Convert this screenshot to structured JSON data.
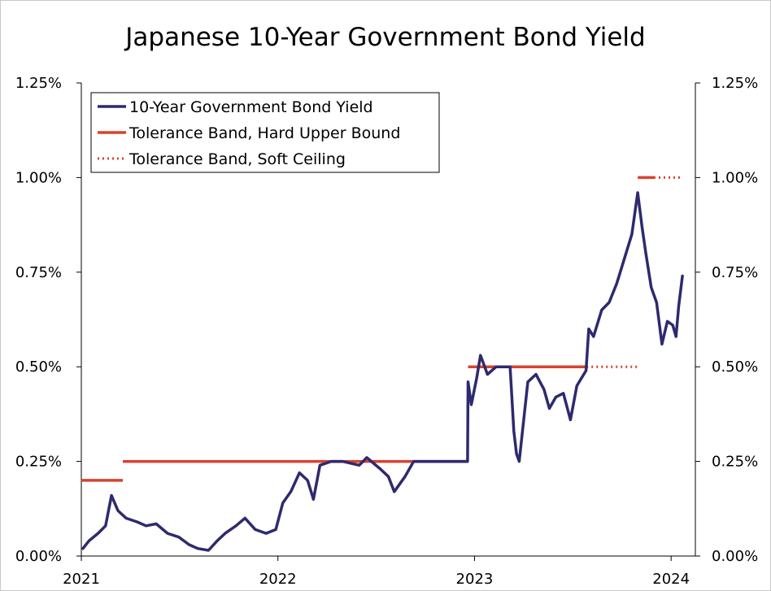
{
  "chart_data": {
    "type": "line",
    "title": "Japanese 10-Year Government Bond Yield",
    "y_ticks": [
      "0.00%",
      "0.25%",
      "0.50%",
      "0.75%",
      "1.00%",
      "1.25%"
    ],
    "y_tick_values": [
      0,
      0.25,
      0.5,
      0.75,
      1.0,
      1.25
    ],
    "x_ticks": [
      "2021",
      "2022",
      "2023",
      "2024"
    ],
    "x_tick_values": [
      "2021-01-01",
      "2022-01-01",
      "2023-01-01",
      "2024-01-01"
    ],
    "xlim": [
      "2021-01-01",
      "2024-02-15"
    ],
    "ylim": [
      0,
      1.25
    ],
    "dual_y_axis": true,
    "grid": false,
    "legend_position": "top-left",
    "colors": {
      "yield": "#2e2a6e",
      "band": "#d8432e"
    },
    "legend": [
      {
        "label": "10-Year Government Bond Yield",
        "style": "solid",
        "color": "#2e2a6e"
      },
      {
        "label": "Tolerance Band, Hard Upper Bound",
        "style": "solid",
        "color": "#d8432e"
      },
      {
        "label": "Tolerance Band, Soft Ceiling",
        "style": "dotted",
        "color": "#d8432e"
      }
    ],
    "series": [
      {
        "name": "10-Year Government Bond Yield",
        "points": [
          [
            "2021-01-04",
            0.02
          ],
          [
            "2021-01-15",
            0.04
          ],
          [
            "2021-02-01",
            0.06
          ],
          [
            "2021-02-15",
            0.08
          ],
          [
            "2021-02-26",
            0.16
          ],
          [
            "2021-03-10",
            0.12
          ],
          [
            "2021-03-25",
            0.1
          ],
          [
            "2021-04-15",
            0.09
          ],
          [
            "2021-05-01",
            0.08
          ],
          [
            "2021-05-20",
            0.085
          ],
          [
            "2021-06-10",
            0.06
          ],
          [
            "2021-07-01",
            0.05
          ],
          [
            "2021-07-20",
            0.03
          ],
          [
            "2021-08-05",
            0.02
          ],
          [
            "2021-08-25",
            0.015
          ],
          [
            "2021-09-10",
            0.04
          ],
          [
            "2021-09-25",
            0.06
          ],
          [
            "2021-10-15",
            0.08
          ],
          [
            "2021-11-01",
            0.1
          ],
          [
            "2021-11-20",
            0.07
          ],
          [
            "2021-12-10",
            0.06
          ],
          [
            "2021-12-28",
            0.07
          ],
          [
            "2022-01-10",
            0.14
          ],
          [
            "2022-01-25",
            0.17
          ],
          [
            "2022-02-10",
            0.22
          ],
          [
            "2022-02-25",
            0.2
          ],
          [
            "2022-03-08",
            0.15
          ],
          [
            "2022-03-20",
            0.24
          ],
          [
            "2022-04-10",
            0.25
          ],
          [
            "2022-05-01",
            0.25
          ],
          [
            "2022-06-01",
            0.24
          ],
          [
            "2022-06-15",
            0.26
          ],
          [
            "2022-07-10",
            0.23
          ],
          [
            "2022-07-25",
            0.21
          ],
          [
            "2022-08-05",
            0.17
          ],
          [
            "2022-08-25",
            0.21
          ],
          [
            "2022-09-10",
            0.25
          ],
          [
            "2022-10-15",
            0.25
          ],
          [
            "2022-11-15",
            0.25
          ],
          [
            "2022-12-19",
            0.25
          ],
          [
            "2022-12-20",
            0.46
          ],
          [
            "2022-12-26",
            0.4
          ],
          [
            "2023-01-05",
            0.47
          ],
          [
            "2023-01-12",
            0.53
          ],
          [
            "2023-01-25",
            0.48
          ],
          [
            "2023-02-10",
            0.5
          ],
          [
            "2023-02-28",
            0.5
          ],
          [
            "2023-03-08",
            0.5
          ],
          [
            "2023-03-15",
            0.33
          ],
          [
            "2023-03-20",
            0.27
          ],
          [
            "2023-03-25",
            0.25
          ],
          [
            "2023-04-10",
            0.46
          ],
          [
            "2023-04-25",
            0.48
          ],
          [
            "2023-05-10",
            0.44
          ],
          [
            "2023-05-20",
            0.39
          ],
          [
            "2023-06-01",
            0.42
          ],
          [
            "2023-06-15",
            0.43
          ],
          [
            "2023-06-28",
            0.36
          ],
          [
            "2023-07-10",
            0.45
          ],
          [
            "2023-07-27",
            0.49
          ],
          [
            "2023-08-01",
            0.6
          ],
          [
            "2023-08-10",
            0.58
          ],
          [
            "2023-08-25",
            0.65
          ],
          [
            "2023-09-08",
            0.67
          ],
          [
            "2023-09-22",
            0.72
          ],
          [
            "2023-10-05",
            0.78
          ],
          [
            "2023-10-20",
            0.85
          ],
          [
            "2023-10-31",
            0.96
          ],
          [
            "2023-11-08",
            0.87
          ],
          [
            "2023-11-15",
            0.8
          ],
          [
            "2023-11-25",
            0.71
          ],
          [
            "2023-12-05",
            0.67
          ],
          [
            "2023-12-15",
            0.56
          ],
          [
            "2023-12-25",
            0.62
          ],
          [
            "2024-01-04",
            0.61
          ],
          [
            "2024-01-10",
            0.58
          ],
          [
            "2024-01-15",
            0.66
          ],
          [
            "2024-01-22",
            0.74
          ]
        ]
      },
      {
        "name": "Tolerance Band, Hard Upper Bound",
        "segments": [
          {
            "from": "2021-01-01",
            "to": "2021-03-19",
            "value": 0.2
          },
          {
            "from": "2021-03-19",
            "to": "2022-12-20",
            "value": 0.25
          },
          {
            "from": "2022-12-20",
            "to": "2023-07-28",
            "value": 0.5
          },
          {
            "from": "2023-10-31",
            "to": "2023-11-30",
            "value": 1.0
          }
        ]
      },
      {
        "name": "Tolerance Band, Soft Ceiling",
        "segments": [
          {
            "from": "2023-07-28",
            "to": "2023-10-31",
            "value": 0.5
          },
          {
            "from": "2023-11-30",
            "to": "2024-01-22",
            "value": 1.0
          }
        ]
      }
    ]
  }
}
